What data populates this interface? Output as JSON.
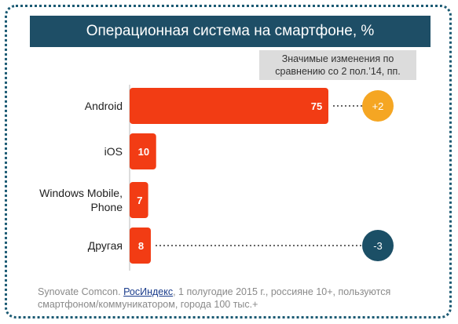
{
  "chart_data": {
    "type": "bar",
    "orientation": "horizontal",
    "title": "Операционная система на смартфоне, %",
    "categories": [
      "Android",
      "iOS",
      "Windows Mobile,\nPhone",
      "Другая"
    ],
    "values": [
      75,
      10,
      7,
      8
    ],
    "change_header": "Значимые изменения по сравнению со 2 пол.’14, пп.",
    "changes": [
      "+2",
      null,
      null,
      "-3"
    ],
    "bar_color": "#f23c14",
    "change_colors": {
      "positive": "#f5a623",
      "negative": "#1b4f66"
    }
  },
  "source": {
    "prefix": "Synovate Comcon. ",
    "link": "РосИндекс",
    "suffix": ", 1 полугодие 2015 г., россияне 10+, пользуются смартфоном/коммуникатором, города 100 тыс.+"
  }
}
